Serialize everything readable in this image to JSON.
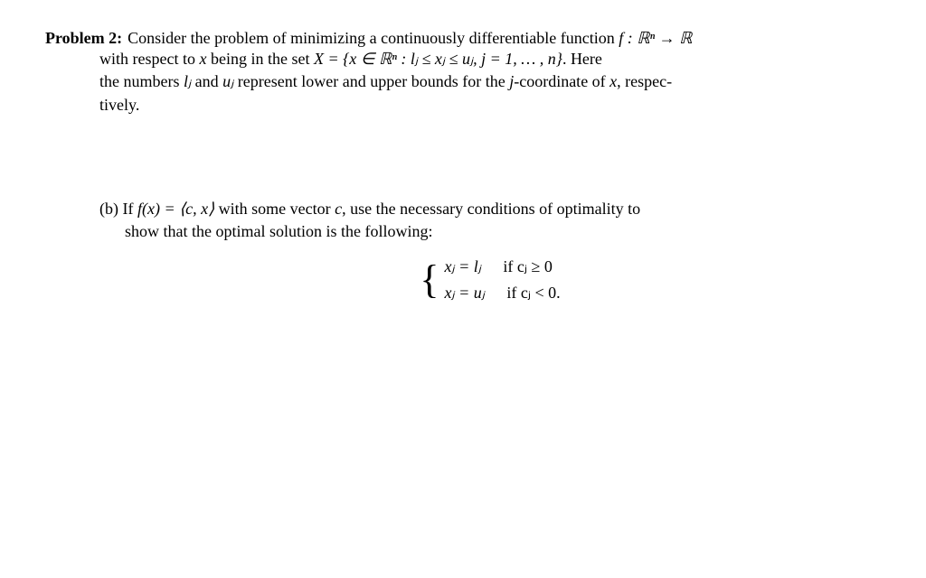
{
  "problem": {
    "label": "Problem 2:",
    "line1_pre": "Consider the problem of minimizing a continuously differentiable function ",
    "line1_math": "f : ℝⁿ → ℝ",
    "line2_pre": "with respect to ",
    "line2_x": "x",
    "line2_mid": " being in the set ",
    "line2_set": "X = {x ∈ ℝⁿ : lⱼ ≤ xⱼ ≤ uⱼ,  j = 1, … , n}",
    "line2_post": ". Here",
    "line3_pre": "the numbers ",
    "line3_lj": "lⱼ",
    "line3_and": " and ",
    "line3_uj": "uⱼ",
    "line3_mid": " represent lower and upper bounds for the ",
    "line3_j": "j",
    "line3_post": "-coordinate of ",
    "line3_x": "x",
    "line3_end": ", respec-",
    "line4": "tively."
  },
  "partb": {
    "label": "(b)",
    "line1_pre": " If ",
    "line1_fx": "f(x) = ⟨c, x⟩",
    "line1_mid": " with some vector ",
    "line1_c": "c",
    "line1_post": ", use the necessary conditions of optimality to",
    "line2": "show that the optimal solution is the following:"
  },
  "cases": {
    "row1_eq": "xⱼ = lⱼ",
    "row1_cond": "if cⱼ ≥ 0",
    "row2_eq": "xⱼ = uⱼ",
    "row2_cond": "if cⱼ < 0."
  }
}
